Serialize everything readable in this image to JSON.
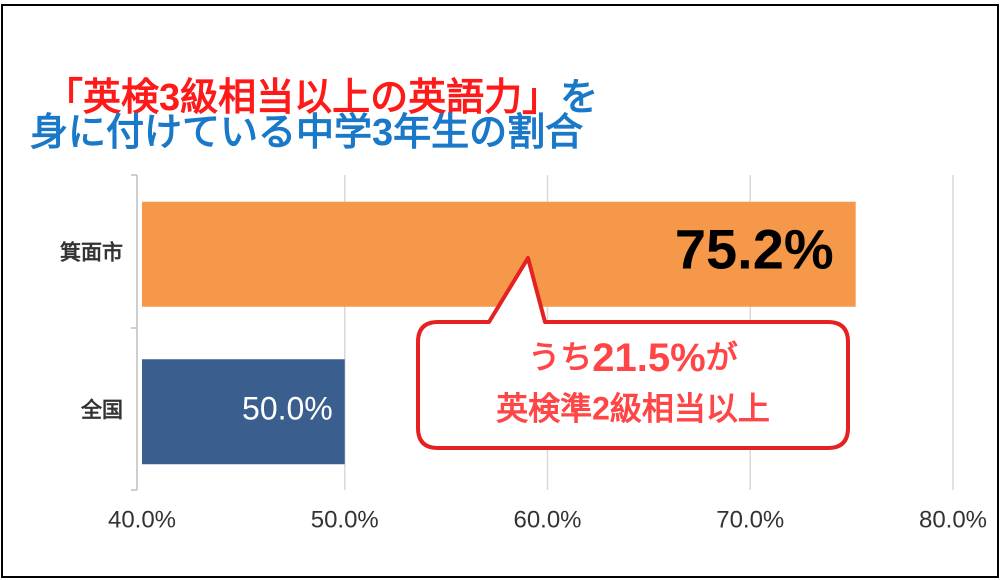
{
  "chart_data": {
    "type": "bar",
    "orientation": "horizontal",
    "title": [
      "「英検3級相当以上の英語力」",
      "を",
      "身に付けている中学3年生の割合"
    ],
    "title_colors": [
      "#ff1a1a",
      "#1a78c8",
      "#1a78c8"
    ],
    "categories": [
      "箕面市",
      "全国"
    ],
    "values": [
      75.2,
      50.0
    ],
    "value_labels": [
      "75.2%",
      "50.0%"
    ],
    "colors": [
      "#f5984a",
      "#3a5f8f"
    ],
    "xlim": [
      40,
      80
    ],
    "xticks": [
      {
        "value": 40,
        "label": "40.0%"
      },
      {
        "value": 50,
        "label": "50.0%"
      },
      {
        "value": 60,
        "label": "60.0%"
      },
      {
        "value": 70,
        "label": "70.0%"
      },
      {
        "value": 80,
        "label": "80.0%"
      }
    ],
    "grid": true,
    "annotation": {
      "parts": [
        "うち",
        "21.5%",
        "が"
      ],
      "line2": "英検準2級相当以上"
    }
  }
}
